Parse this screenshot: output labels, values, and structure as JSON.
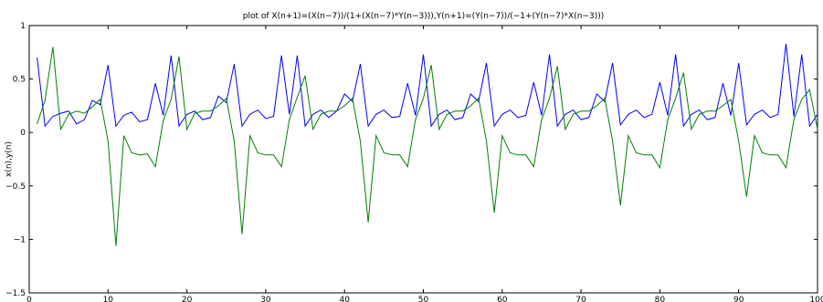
{
  "chart_data": {
    "type": "line",
    "title": "plot of X(n+1)=(X(n−7))/(1+(X(n−7)*Y(n−3))),Y(n+1)=(Y(n−7))/(−1+(Y(n−7)*X(n−3)))",
    "xlabel": "",
    "ylabel": "x(n),y(n)",
    "xlim": [
      0,
      100
    ],
    "ylim": [
      -1.5,
      1
    ],
    "x_ticks": [
      {
        "value": 0,
        "label": "0"
      },
      {
        "value": 10,
        "label": "10"
      },
      {
        "value": 20,
        "label": "20"
      },
      {
        "value": 30,
        "label": "30"
      },
      {
        "value": 40,
        "label": "40"
      },
      {
        "value": 50,
        "label": "50"
      },
      {
        "value": 60,
        "label": "60"
      },
      {
        "value": 70,
        "label": "70"
      },
      {
        "value": 80,
        "label": "80"
      },
      {
        "value": 90,
        "label": "90"
      },
      {
        "value": 100,
        "label": "100"
      }
    ],
    "y_ticks": [
      {
        "value": 1,
        "label": "1"
      },
      {
        "value": 0.5,
        "label": "0.5"
      },
      {
        "value": 0,
        "label": "0"
      },
      {
        "value": -0.5,
        "label": "−0.5"
      },
      {
        "value": -1,
        "label": "−1"
      },
      {
        "value": -1.5,
        "label": "−1.5"
      }
    ],
    "grid": false,
    "x": [
      1,
      2,
      3,
      4,
      5,
      6,
      7,
      8,
      9,
      10,
      11,
      12,
      13,
      14,
      15,
      16,
      17,
      18,
      19,
      20,
      21,
      22,
      23,
      24,
      25,
      26,
      27,
      28,
      29,
      30,
      31,
      32,
      33,
      34,
      35,
      36,
      37,
      38,
      39,
      40,
      41,
      42,
      43,
      44,
      45,
      46,
      47,
      48,
      49,
      50,
      51,
      52,
      53,
      54,
      55,
      56,
      57,
      58,
      59,
      60,
      61,
      62,
      63,
      64,
      65,
      66,
      67,
      68,
      69,
      70,
      71,
      72,
      73,
      74,
      75,
      76,
      77,
      78,
      79,
      80,
      81,
      82,
      83,
      84,
      85,
      86,
      87,
      88,
      89,
      90,
      91,
      92,
      93,
      94,
      95,
      96,
      97,
      98,
      99,
      100
    ],
    "series": [
      {
        "color": "#0000ff",
        "values": [
          0.7,
          0.06,
          0.15,
          0.18,
          0.2,
          0.08,
          0.12,
          0.3,
          0.26,
          0.63,
          0.06,
          0.16,
          0.19,
          0.1,
          0.12,
          0.46,
          0.16,
          0.72,
          0.06,
          0.17,
          0.2,
          0.12,
          0.14,
          0.34,
          0.28,
          0.64,
          0.06,
          0.17,
          0.21,
          0.13,
          0.15,
          0.72,
          0.17,
          0.72,
          0.06,
          0.17,
          0.21,
          0.14,
          0.2,
          0.36,
          0.29,
          0.64,
          0.06,
          0.17,
          0.21,
          0.14,
          0.15,
          0.46,
          0.16,
          0.73,
          0.06,
          0.17,
          0.21,
          0.12,
          0.14,
          0.36,
          0.29,
          0.65,
          0.06,
          0.17,
          0.21,
          0.14,
          0.16,
          0.47,
          0.16,
          0.73,
          0.06,
          0.17,
          0.21,
          0.12,
          0.14,
          0.36,
          0.29,
          0.65,
          0.07,
          0.17,
          0.21,
          0.14,
          0.17,
          0.47,
          0.16,
          0.73,
          0.06,
          0.17,
          0.21,
          0.12,
          0.14,
          0.46,
          0.16,
          0.65,
          0.07,
          0.17,
          0.21,
          0.14,
          0.17,
          0.83,
          0.15,
          0.73,
          0.06,
          0.17
        ]
      },
      {
        "color": "#008000",
        "values": [
          0.08,
          0.3,
          0.8,
          0.03,
          0.17,
          0.2,
          0.18,
          0.24,
          0.31,
          -0.08,
          -1.06,
          -0.03,
          -0.19,
          -0.21,
          -0.2,
          -0.32,
          0.11,
          0.31,
          0.71,
          0.03,
          0.18,
          0.2,
          0.2,
          0.25,
          0.32,
          -0.08,
          -0.95,
          -0.03,
          -0.19,
          -0.21,
          -0.21,
          -0.32,
          0.12,
          0.33,
          0.53,
          0.03,
          0.17,
          0.2,
          0.2,
          0.25,
          0.32,
          -0.08,
          -0.84,
          -0.03,
          -0.19,
          -0.21,
          -0.21,
          -0.32,
          0.12,
          0.32,
          0.63,
          0.03,
          0.17,
          0.2,
          0.2,
          0.25,
          0.32,
          -0.08,
          -0.75,
          -0.03,
          -0.19,
          -0.21,
          -0.21,
          -0.32,
          0.12,
          0.32,
          0.62,
          0.03,
          0.17,
          0.2,
          0.2,
          0.25,
          0.32,
          -0.08,
          -0.68,
          -0.03,
          -0.19,
          -0.21,
          -0.21,
          -0.33,
          0.12,
          0.32,
          0.56,
          0.03,
          0.17,
          0.2,
          0.2,
          0.25,
          0.31,
          -0.08,
          -0.6,
          -0.03,
          -0.19,
          -0.21,
          -0.21,
          -0.33,
          0.12,
          0.31,
          0.4,
          0.03
        ]
      }
    ]
  }
}
